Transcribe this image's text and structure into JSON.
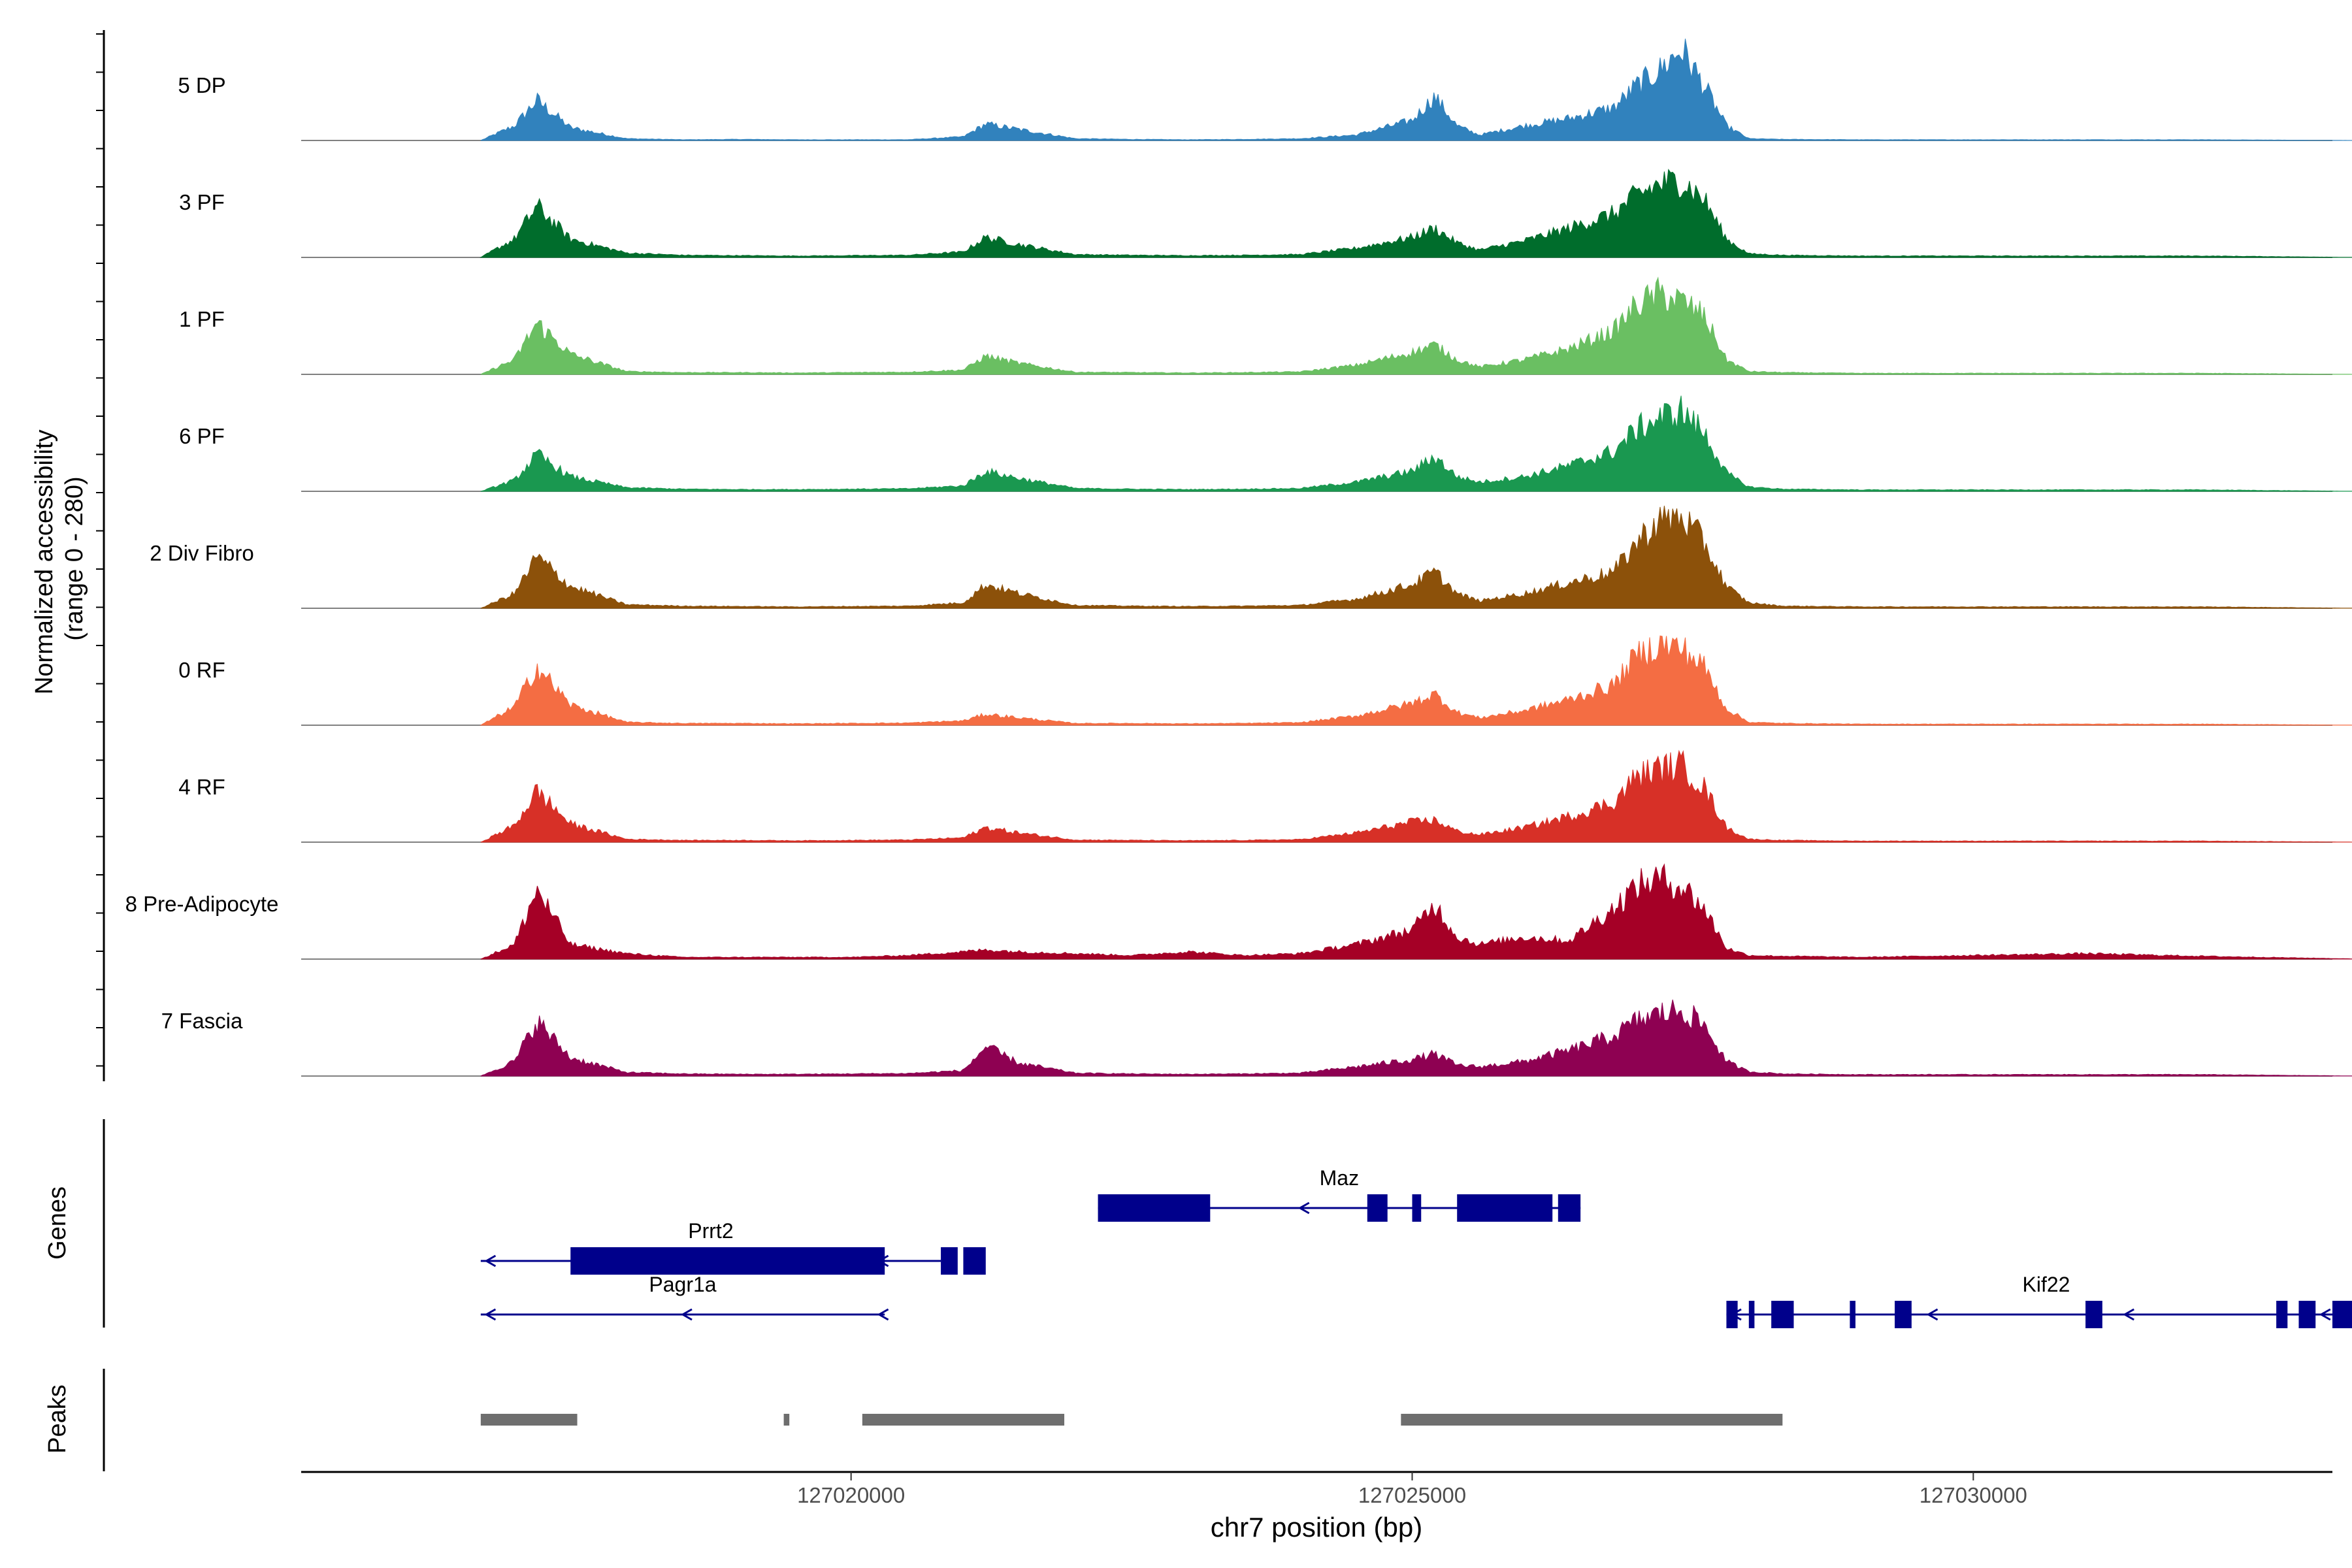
{
  "chart_data": {
    "type": "area",
    "title": "",
    "ylabel_line1": "Normalized accessibility",
    "ylabel_line2": "(range 0 - 280)",
    "yrange": [
      0,
      280
    ],
    "xlabel": "chr7 position (bp)",
    "xlim": [
      127015100,
      127033200
    ],
    "xticks": [
      127020000,
      127025000,
      127030000
    ],
    "xtick_labels": [
      "127020000",
      "127025000",
      "127030000"
    ],
    "genes_label": "Genes",
    "peaks_label": "Peaks",
    "tracks": [
      {
        "name": "5 DP",
        "color": "#3182BD"
      },
      {
        "name": "3 PF",
        "color": "#006D2C"
      },
      {
        "name": "1 PF",
        "color": "#6ABF62"
      },
      {
        "name": "6 PF",
        "color": "#1A9850"
      },
      {
        "name": "2 Div Fibro",
        "color": "#8C510A"
      },
      {
        "name": "0 RF",
        "color": "#F46D43"
      },
      {
        "name": "4 RF",
        "color": "#D73027"
      },
      {
        "name": "8 Pre-Adipocyte",
        "color": "#A50026"
      },
      {
        "name": "7 Fascia",
        "color": "#8E0152"
      }
    ],
    "coverage_profile": {
      "positions": [
        127016700,
        127017000,
        127017200,
        127017500,
        127018000,
        127018500,
        127019000,
        127019500,
        127020000,
        127020500,
        127021000,
        127021200,
        127021500,
        127022000,
        127022500,
        127023000,
        127023500,
        127024000,
        127024500,
        127025000,
        127025200,
        127025400,
        127025600,
        127026000,
        127026400,
        127026800,
        127027000,
        127027200,
        127027400,
        127027600,
        127027800,
        127028000,
        127028300,
        127029000,
        127030000,
        127031000,
        127032000,
        127033500
      ],
      "tracks": [
        [
          0,
          40,
          110,
          35,
          5,
          2,
          3,
          2,
          2,
          2,
          10,
          45,
          30,
          5,
          3,
          2,
          3,
          5,
          15,
          55,
          120,
          40,
          15,
          40,
          60,
          90,
          150,
          190,
          250,
          150,
          40,
          5,
          3,
          2,
          2,
          2,
          2,
          0
        ],
        [
          0,
          50,
          140,
          50,
          12,
          6,
          5,
          4,
          5,
          6,
          15,
          55,
          35,
          8,
          6,
          5,
          6,
          8,
          25,
          55,
          80,
          40,
          20,
          45,
          80,
          120,
          170,
          200,
          210,
          160,
          50,
          10,
          6,
          4,
          4,
          4,
          4,
          0
        ],
        [
          0,
          40,
          140,
          55,
          8,
          5,
          5,
          4,
          5,
          6,
          12,
          50,
          30,
          6,
          5,
          4,
          5,
          7,
          25,
          60,
          80,
          40,
          20,
          40,
          70,
          120,
          190,
          220,
          200,
          160,
          40,
          8,
          5,
          3,
          3,
          3,
          3,
          0
        ],
        [
          0,
          30,
          100,
          40,
          10,
          6,
          5,
          5,
          6,
          7,
          15,
          55,
          35,
          8,
          6,
          5,
          6,
          8,
          25,
          55,
          95,
          40,
          25,
          40,
          70,
          110,
          170,
          200,
          220,
          160,
          50,
          12,
          6,
          4,
          4,
          4,
          4,
          0
        ],
        [
          0,
          40,
          140,
          60,
          10,
          6,
          5,
          4,
          5,
          6,
          15,
          65,
          40,
          8,
          6,
          5,
          6,
          8,
          25,
          65,
          100,
          40,
          20,
          40,
          70,
          100,
          180,
          240,
          250,
          180,
          60,
          15,
          6,
          4,
          4,
          4,
          4,
          0
        ],
        [
          0,
          50,
          160,
          55,
          8,
          5,
          5,
          4,
          5,
          6,
          12,
          30,
          20,
          5,
          5,
          4,
          5,
          7,
          25,
          60,
          85,
          35,
          20,
          40,
          70,
          110,
          190,
          220,
          210,
          160,
          45,
          8,
          5,
          3,
          3,
          3,
          3,
          0
        ],
        [
          0,
          45,
          140,
          50,
          8,
          5,
          5,
          4,
          5,
          6,
          12,
          40,
          25,
          6,
          5,
          4,
          5,
          7,
          25,
          55,
          60,
          30,
          20,
          40,
          70,
          110,
          180,
          200,
          210,
          150,
          40,
          8,
          5,
          3,
          3,
          3,
          3,
          0
        ],
        [
          0,
          40,
          190,
          40,
          15,
          5,
          5,
          5,
          5,
          10,
          20,
          25,
          20,
          15,
          10,
          20,
          10,
          15,
          40,
          80,
          150,
          60,
          40,
          60,
          50,
          140,
          200,
          220,
          200,
          140,
          30,
          10,
          8,
          5,
          10,
          15,
          8,
          0
        ],
        [
          0,
          40,
          150,
          50,
          10,
          6,
          5,
          5,
          6,
          7,
          15,
          80,
          35,
          8,
          6,
          5,
          6,
          8,
          25,
          45,
          60,
          30,
          25,
          40,
          70,
          110,
          150,
          170,
          180,
          140,
          40,
          12,
          6,
          4,
          4,
          4,
          4,
          0
        ]
      ]
    },
    "genes": [
      {
        "name": "Maz",
        "start": 127022200,
        "end": 127026500,
        "strand": "-",
        "row": 0,
        "exons": [
          [
            127022200,
            127023200
          ],
          [
            127024600,
            127024780
          ],
          [
            127025000,
            127025080
          ],
          [
            127025400,
            127026250
          ],
          [
            127026300,
            127026500
          ]
        ]
      },
      {
        "name": "Prrt2",
        "start": 127016700,
        "end": 127020800,
        "strand": "-",
        "row": 1,
        "exons": [
          [
            127017500,
            127020300
          ],
          [
            127020800,
            127020950
          ],
          [
            127021000,
            127021200
          ]
        ]
      },
      {
        "name": "Pagr1a",
        "start": 127016700,
        "end": 127020300,
        "strand": "-",
        "row": 2,
        "exons": []
      },
      {
        "name": "Kif22",
        "start": 127027800,
        "end": 127033500,
        "strand": "-",
        "row": 2,
        "exons": [
          [
            127027800,
            127027900
          ],
          [
            127028000,
            127028050
          ],
          [
            127028200,
            127028400
          ],
          [
            127028900,
            127028950
          ],
          [
            127029300,
            127029450
          ],
          [
            127031000,
            127031150
          ],
          [
            127032700,
            127032800
          ],
          [
            127032900,
            127033050
          ],
          [
            127033200,
            127033400
          ]
        ]
      }
    ],
    "peaks": [
      [
        127016700,
        127017560
      ],
      [
        127019400,
        127019450
      ],
      [
        127020100,
        127021900
      ],
      [
        127024900,
        127028300
      ]
    ]
  }
}
